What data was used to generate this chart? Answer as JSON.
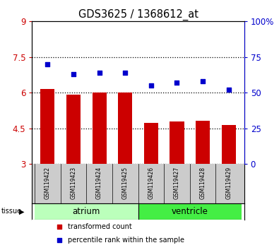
{
  "title": "GDS3625 / 1368612_at",
  "samples": [
    "GSM119422",
    "GSM119423",
    "GSM119424",
    "GSM119425",
    "GSM119426",
    "GSM119427",
    "GSM119428",
    "GSM119429"
  ],
  "transformed_count": [
    6.15,
    5.93,
    6.0,
    6.0,
    4.73,
    4.78,
    4.82,
    4.65
  ],
  "percentile_rank": [
    70,
    63,
    64,
    64,
    55,
    57,
    58,
    52
  ],
  "ylim_left": [
    3,
    9
  ],
  "ylim_right": [
    0,
    100
  ],
  "yticks_left": [
    3,
    4.5,
    6,
    7.5,
    9
  ],
  "yticks_right": [
    0,
    25,
    50,
    75,
    100
  ],
  "ytick_labels_left": [
    "3",
    "4.5",
    "6",
    "7.5",
    "9"
  ],
  "ytick_labels_right": [
    "0",
    "25",
    "50",
    "75",
    "100%"
  ],
  "bar_color": "#cc0000",
  "dot_color": "#0000cc",
  "bar_bottom": 3,
  "groups": [
    {
      "label": "atrium",
      "samples": [
        0,
        1,
        2,
        3
      ],
      "color": "#bbffbb"
    },
    {
      "label": "ventricle",
      "samples": [
        4,
        5,
        6,
        7
      ],
      "color": "#44ee44"
    }
  ],
  "tissue_label": "tissue",
  "legend_items": [
    {
      "color": "#cc0000",
      "label": "transformed count"
    },
    {
      "color": "#0000cc",
      "label": "percentile rank within the sample"
    }
  ],
  "background_color": "#ffffff",
  "tick_color_left": "#cc0000",
  "tick_color_right": "#0000cc",
  "sample_box_color": "#cccccc"
}
